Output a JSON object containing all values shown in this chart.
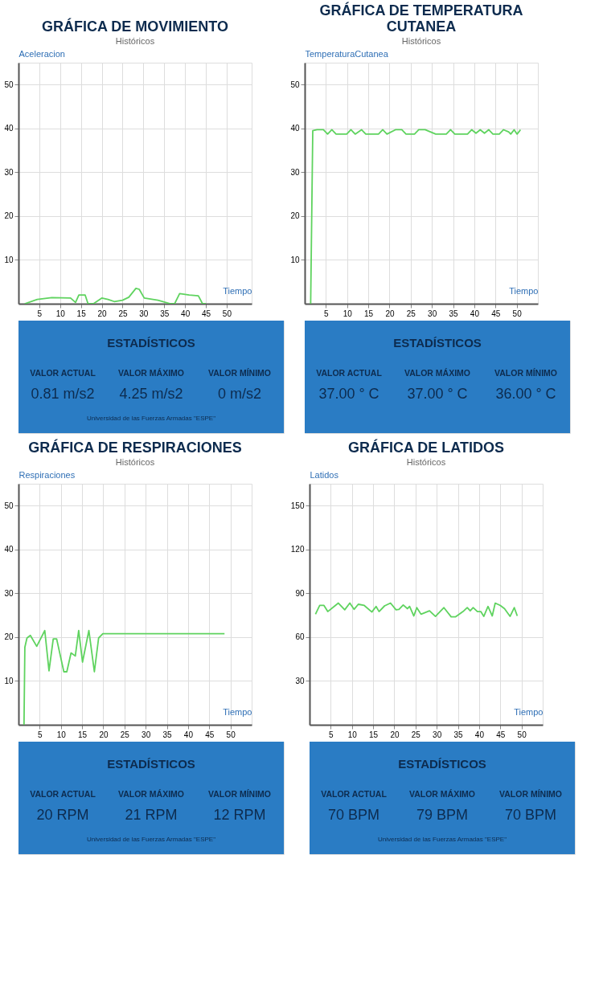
{
  "chart_data": [
    {
      "type": "line",
      "subtitle": "Históricos",
      "title": "GRÁFICA DE MOVIMIENTO",
      "xlabel": "Tiempo",
      "ylabel": "Aceleracion",
      "xlim": [
        0,
        56
      ],
      "ylim": [
        0,
        55
      ],
      "xticks": [
        5,
        10,
        15,
        20,
        25,
        30,
        35,
        40,
        45,
        50
      ],
      "yticks": [
        10,
        20,
        30,
        40,
        50
      ],
      "grid": true,
      "color": "#5fd35f",
      "x": [
        1.5,
        4.5,
        8,
        12.5,
        13.7,
        14.5,
        16,
        16.7,
        18,
        20,
        21.5,
        23,
        25,
        26.5,
        28.2,
        29,
        30.2,
        33.5,
        36.5,
        37.5,
        38.7,
        41,
        43.2,
        44.2,
        45
      ],
      "values": [
        0,
        1,
        1.4,
        1.3,
        0.3,
        2,
        2,
        0,
        0,
        1.3,
        1,
        0.5,
        0.8,
        1.5,
        3.5,
        3.3,
        1.3,
        0.8,
        0,
        0,
        2.3,
        2,
        1.8,
        0,
        0
      ]
    },
    {
      "type": "other",
      "title": "ESTADÍSTICOS",
      "annotations": [
        "VALOR ACTUAL",
        "VALOR MÁXIMO",
        "VALOR MÍNIMO",
        "0.81 m/s2",
        "4.25 m/s2",
        "0 m/s2",
        "Universidad de las Fuerzas Armadas \"ESPE\""
      ]
    },
    {
      "type": "line",
      "subtitle": "Históricos",
      "title": "GRÁFICA DE TEMPERATURA CUTANEA",
      "xlabel": "Tiempo",
      "ylabel": "TemperaturaCutanea",
      "xlim": [
        0,
        55
      ],
      "ylim": [
        0,
        55
      ],
      "xticks": [
        5,
        10,
        15,
        20,
        25,
        30,
        35,
        40,
        45,
        50
      ],
      "yticks": [
        10,
        20,
        30,
        40,
        50
      ],
      "grid": true,
      "color": "#5fd35f",
      "x": [
        1.4,
        1.9,
        2.9,
        4.4,
        5.4,
        6.4,
        7.4,
        9.9,
        10.9,
        11.9,
        13.4,
        14.4,
        17.4,
        18.4,
        19.4,
        21.4,
        22.9,
        23.9,
        25.9,
        26.9,
        28.4,
        30.9,
        33.4,
        34.4,
        35.4,
        38.4,
        39.4,
        40.4,
        41.4,
        42.4,
        43.4,
        44.4,
        45.9,
        46.9,
        48.1,
        48.6,
        49.4,
        50.1,
        50.9
      ],
      "values": [
        0,
        39.5,
        39.7,
        39.7,
        38.7,
        39.7,
        38.7,
        38.7,
        39.7,
        38.7,
        39.7,
        38.7,
        38.7,
        39.7,
        38.7,
        39.7,
        39.7,
        38.7,
        38.7,
        39.7,
        39.7,
        38.7,
        38.7,
        39.7,
        38.7,
        38.7,
        39.7,
        38.9,
        39.7,
        38.9,
        39.7,
        38.7,
        38.7,
        39.7,
        39.2,
        38.7,
        39.7,
        38.7,
        39.7
      ]
    },
    {
      "type": "other",
      "title": "ESTADÍSTICOS",
      "annotations": [
        "VALOR ACTUAL",
        "VALOR MÁXIMO",
        "VALOR MÍNIMO",
        "37.00 ° C",
        "37.00 ° C",
        "36.00 ° C"
      ]
    },
    {
      "type": "line",
      "subtitle": "Históricos",
      "title": "GRÁFICA DE RESPIRACIONES",
      "xlabel": "Tiempo",
      "ylabel": "Respiraciones",
      "xlim": [
        0,
        55
      ],
      "ylim": [
        0,
        55
      ],
      "xticks": [
        5,
        10,
        15,
        20,
        25,
        30,
        35,
        40,
        45,
        50
      ],
      "yticks": [
        10,
        20,
        30,
        40,
        50
      ],
      "grid": true,
      "color": "#5fd35f",
      "x": [
        1.3,
        1.5,
        2,
        2.8,
        4.3,
        6.2,
        7.2,
        8.2,
        9,
        10.7,
        11.4,
        12.4,
        13.4,
        14.2,
        15.1,
        16.6,
        17.9,
        18.9,
        19.9,
        48.6
      ],
      "values": [
        0,
        17.7,
        19.8,
        20.4,
        17.9,
        21.5,
        12.3,
        19.6,
        19.6,
        12.1,
        12.1,
        16.4,
        15.7,
        21.5,
        14.3,
        21.5,
        12.1,
        19.8,
        20.8,
        20.8
      ]
    },
    {
      "type": "other",
      "title": "ESTADÍSTICOS",
      "annotations": [
        "VALOR ACTUAL",
        "VALOR MÁXIMO",
        "VALOR MÍNIMO",
        "20 RPM",
        "21 RPM",
        "12 RPM",
        "Universidad de las Fuerzas Armadas \"ESPE\""
      ]
    },
    {
      "type": "line",
      "subtitle": "Históricos",
      "title": "GRÁFICA DE LATIDOS",
      "xlabel": "Tiempo",
      "ylabel": "Latidos",
      "xlim": [
        0,
        55
      ],
      "ylim": [
        0,
        165
      ],
      "xticks": [
        5,
        10,
        15,
        20,
        25,
        30,
        35,
        40,
        45,
        50
      ],
      "yticks": [
        30,
        60,
        90,
        120,
        150
      ],
      "grid": true,
      "color": "#5fd35f",
      "x": [
        1.4,
        2.4,
        3.4,
        4.3,
        5.8,
        6.8,
        8.3,
        9.5,
        10.5,
        11.5,
        12.9,
        14.7,
        15.7,
        16.4,
        17.7,
        19.1,
        20.4,
        21.1,
        22.1,
        23.1,
        23.6,
        24.6,
        25.3,
        26.3,
        28.3,
        29.7,
        31.7,
        33.4,
        34.4,
        36.2,
        37.2,
        37.9,
        38.6,
        39.6,
        40.4,
        41.1,
        42.1,
        43.1,
        43.8,
        45,
        46,
        47.3,
        48.3,
        49
      ],
      "values": [
        75.7,
        81.7,
        81.7,
        77.5,
        81,
        83.3,
        78.7,
        83.3,
        79,
        82.5,
        81.7,
        77.2,
        81,
        77.5,
        81.4,
        83.3,
        78.7,
        79,
        82,
        79.5,
        81,
        74.5,
        80.2,
        75.7,
        78,
        74.2,
        80.2,
        73.9,
        73.9,
        77.5,
        80.2,
        78,
        80.2,
        77.5,
        77.5,
        74.2,
        81,
        74.5,
        83.3,
        81.7,
        79.5,
        74.2,
        80.2,
        74.5
      ]
    },
    {
      "type": "other",
      "title": "ESTADÍSTICOS",
      "annotations": [
        "VALOR ACTUAL",
        "VALOR MÁXIMO",
        "VALOR MÍNIMO",
        "70 BPM",
        "79 BPM",
        "70 BPM",
        "Universidad de las Fuerzas Armadas \"ESPE\""
      ]
    }
  ]
}
